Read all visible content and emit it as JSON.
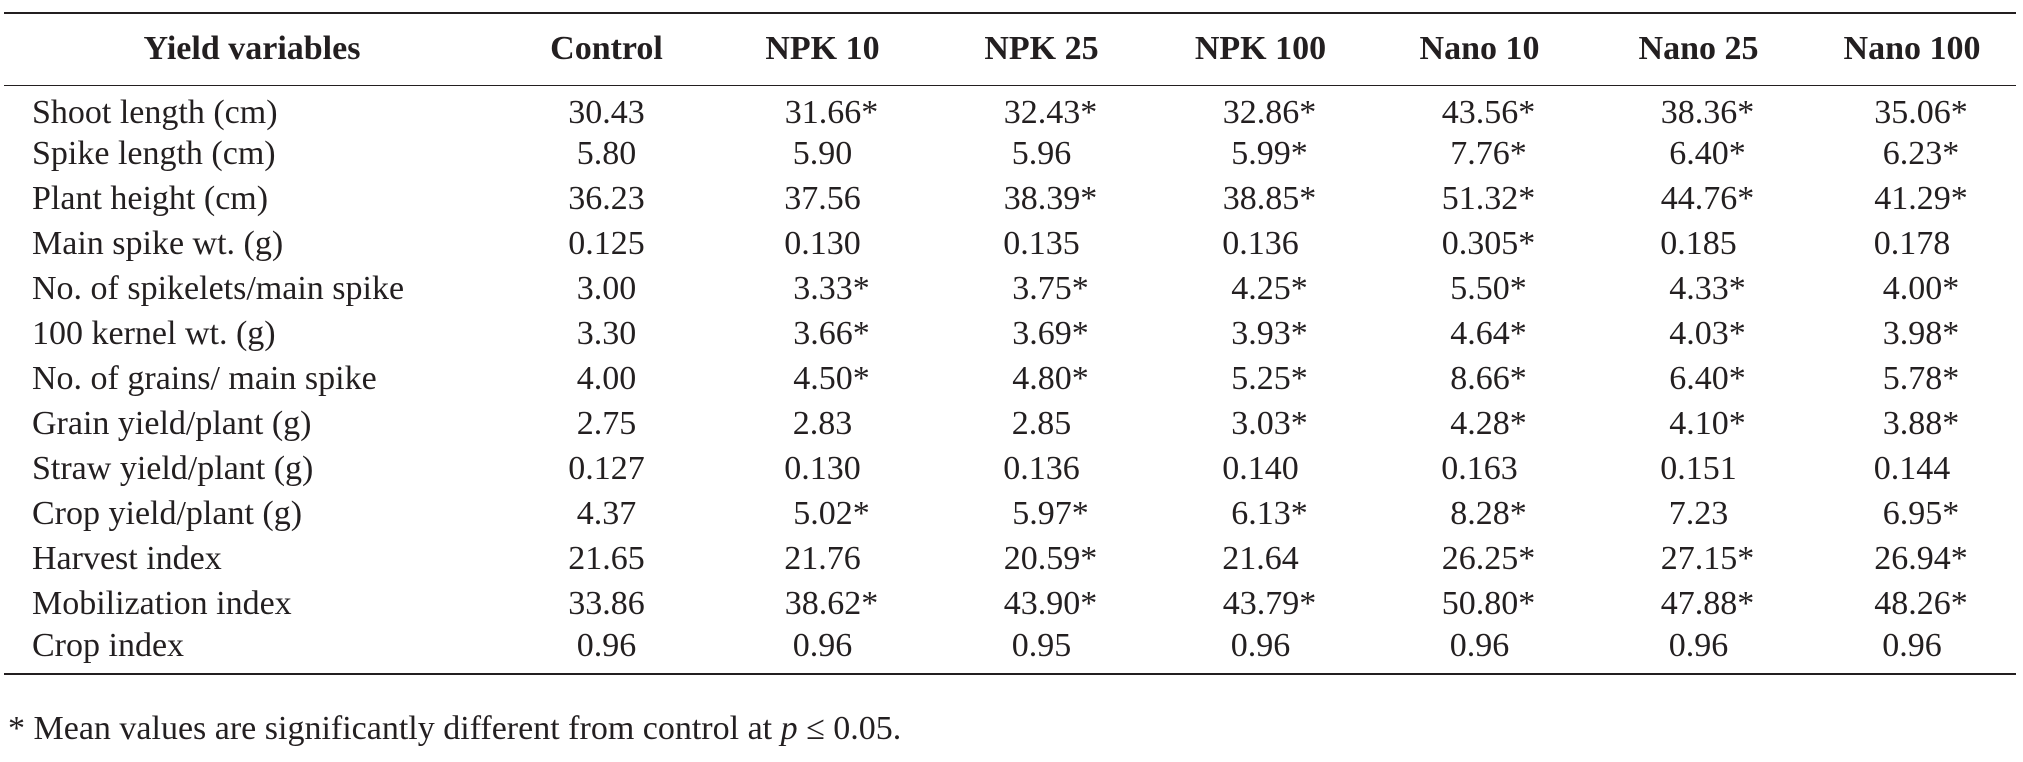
{
  "table": {
    "headers": [
      "Yield variables",
      "Control",
      "NPK 10",
      "NPK 25",
      "NPK 100",
      "Nano 10",
      "Nano 25",
      "Nano 100"
    ],
    "rows": [
      {
        "label": "Shoot length (cm)",
        "values": [
          "30.43",
          "31.66*",
          "32.43*",
          "32.86*",
          "43.56*",
          "38.36*",
          "35.06*"
        ]
      },
      {
        "label": "Spike length (cm)",
        "values": [
          "5.80",
          "5.90",
          "5.96",
          "5.99*",
          "7.76*",
          "6.40*",
          "6.23*"
        ]
      },
      {
        "label": "Plant height (cm)",
        "values": [
          "36.23",
          "37.56",
          "38.39*",
          "38.85*",
          "51.32*",
          "44.76*",
          "41.29*"
        ]
      },
      {
        "label": "Main spike wt. (g)",
        "values": [
          "0.125",
          "0.130",
          "0.135",
          "0.136",
          "0.305*",
          "0.185",
          "0.178"
        ]
      },
      {
        "label": "No. of spikelets/main spike",
        "values": [
          "3.00",
          "3.33*",
          "3.75*",
          "4.25*",
          "5.50*",
          "4.33*",
          "4.00*"
        ]
      },
      {
        "label": "100 kernel wt. (g)",
        "values": [
          "3.30",
          "3.66*",
          "3.69*",
          "3.93*",
          "4.64*",
          "4.03*",
          "3.98*"
        ]
      },
      {
        "label": "No. of grains/ main spike",
        "values": [
          "4.00",
          "4.50*",
          "4.80*",
          "5.25*",
          "8.66*",
          "6.40*",
          "5.78*"
        ]
      },
      {
        "label": "Grain yield/plant (g)",
        "values": [
          "2.75",
          "2.83",
          "2.85",
          "3.03*",
          "4.28*",
          "4.10*",
          "3.88*"
        ]
      },
      {
        "label": "Straw yield/plant (g)",
        "values": [
          "0.127",
          "0.130",
          "0.136",
          "0.140",
          "0.163",
          "0.151",
          "0.144"
        ]
      },
      {
        "label": "Crop yield/plant (g)",
        "values": [
          "4.37",
          "5.02*",
          "5.97*",
          "6.13*",
          "8.28*",
          "7.23",
          "6.95*"
        ]
      },
      {
        "label": "Harvest index",
        "values": [
          "21.65",
          "21.76",
          "20.59*",
          "21.64",
          "26.25*",
          "27.15*",
          "26.94*"
        ]
      },
      {
        "label": "Mobilization index",
        "values": [
          "33.86",
          "38.62*",
          "43.90*",
          "43.79*",
          "50.80*",
          "47.88*",
          "48.26*"
        ]
      },
      {
        "label": "Crop index",
        "values": [
          "0.96",
          "0.96",
          "0.95",
          "0.96",
          "0.96",
          "0.96",
          "0.96"
        ]
      }
    ]
  },
  "footnote": {
    "prefix": "* Mean values are significantly different from control at ",
    "variable": "p",
    "suffix": " ≤ 0.05."
  }
}
